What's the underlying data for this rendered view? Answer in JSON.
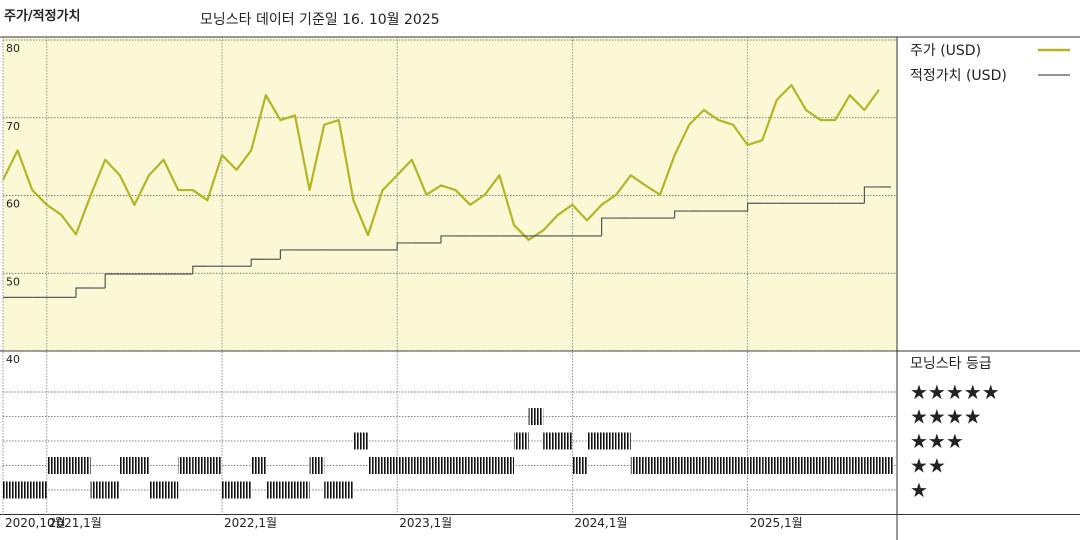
{
  "chart_data": [
    {
      "type": "line",
      "title": "주가/적정가치",
      "subtitle": "모닝스타 데이터 기준일 16. 10월 2025",
      "x": [
        "2020-10",
        "2020-11",
        "2020-12",
        "2021-01",
        "2021-02",
        "2021-03",
        "2021-04",
        "2021-05",
        "2021-06",
        "2021-07",
        "2021-08",
        "2021-09",
        "2021-10",
        "2021-11",
        "2021-12",
        "2022-01",
        "2022-02",
        "2022-03",
        "2022-04",
        "2022-05",
        "2022-06",
        "2022-07",
        "2022-08",
        "2022-09",
        "2022-10",
        "2022-11",
        "2022-12",
        "2023-01",
        "2023-02",
        "2023-03",
        "2023-04",
        "2023-05",
        "2023-06",
        "2023-07",
        "2023-08",
        "2023-09",
        "2023-10",
        "2023-11",
        "2023-12",
        "2024-01",
        "2024-02",
        "2024-03",
        "2024-04",
        "2024-05",
        "2024-06",
        "2024-07",
        "2024-08",
        "2024-09",
        "2024-10",
        "2024-11",
        "2024-12",
        "2025-01",
        "2025-02",
        "2025-03",
        "2025-04",
        "2025-05",
        "2025-06",
        "2025-07",
        "2025-08",
        "2025-09",
        "2025-10"
      ],
      "series": [
        {
          "name": "주가 (USD)",
          "color": "#b3b525",
          "style": "line",
          "values": [
            62,
            65.8,
            60.7,
            58.8,
            57.5,
            55,
            60,
            64.6,
            62.6,
            58.8,
            62.6,
            64.6,
            60.7,
            60.7,
            59.4,
            65.2,
            63.3,
            65.8,
            72.9,
            69.7,
            70.3,
            60.7,
            69.1,
            69.7,
            59.4,
            54.9,
            60.7,
            62.6,
            64.6,
            60.1,
            61.3,
            60.7,
            58.8,
            60.1,
            62.6,
            56.2,
            54.3,
            55.5,
            57.5,
            58.8,
            56.8,
            58.8,
            60.1,
            62.6,
            61.3,
            60.1,
            65.2,
            69.1,
            71,
            69.7,
            69.1,
            66.5,
            67.1,
            72.3,
            74.2,
            71,
            69.7,
            69.7,
            72.9,
            71,
            73.6
          ]
        },
        {
          "name": "적정가치 (USD)",
          "color": "#555555",
          "style": "step",
          "values": [
            46.9,
            46.9,
            46.9,
            46.9,
            46.9,
            48.1,
            48.1,
            49.9,
            49.9,
            49.9,
            49.9,
            49.9,
            49.9,
            50.9,
            50.9,
            50.9,
            50.9,
            51.8,
            51.8,
            53.0,
            53.0,
            53.0,
            53.0,
            53.0,
            53.0,
            53.0,
            53.0,
            53.9,
            53.9,
            53.9,
            54.8,
            54.8,
            54.8,
            54.8,
            54.8,
            54.8,
            54.8,
            54.8,
            54.8,
            54.8,
            54.8,
            57.1,
            57.1,
            57.1,
            57.1,
            57.1,
            58.0,
            58.0,
            58.0,
            58.0,
            58.0,
            59.0,
            59.0,
            59.0,
            59.0,
            59.0,
            59.0,
            59.0,
            59.0,
            61.1,
            61.1
          ]
        }
      ],
      "ylim": [
        40,
        80
      ],
      "yticks": [
        40,
        50,
        60,
        70,
        80
      ],
      "grid": true,
      "background": "#fbf8d6"
    },
    {
      "type": "rating",
      "title": "모닝스타 등급",
      "x": [
        "2020-10",
        "2020-11",
        "2020-12",
        "2021-01",
        "2021-02",
        "2021-03",
        "2021-04",
        "2021-05",
        "2021-06",
        "2021-07",
        "2021-08",
        "2021-09",
        "2021-10",
        "2021-11",
        "2021-12",
        "2022-01",
        "2022-02",
        "2022-03",
        "2022-04",
        "2022-05",
        "2022-06",
        "2022-07",
        "2022-08",
        "2022-09",
        "2022-10",
        "2022-11",
        "2022-12",
        "2023-01",
        "2023-02",
        "2023-03",
        "2023-04",
        "2023-05",
        "2023-06",
        "2023-07",
        "2023-08",
        "2023-09",
        "2023-10",
        "2023-11",
        "2023-12",
        "2024-01",
        "2024-02",
        "2024-03",
        "2024-04",
        "2024-05",
        "2024-06",
        "2024-07",
        "2024-08",
        "2024-09",
        "2024-10",
        "2024-11",
        "2024-12",
        "2025-01",
        "2025-02",
        "2025-03",
        "2025-04",
        "2025-05",
        "2025-06",
        "2025-07",
        "2025-08",
        "2025-09",
        "2025-10"
      ],
      "values": [
        1,
        1,
        1,
        2,
        2,
        2,
        1,
        1,
        2,
        2,
        1,
        1,
        2,
        2,
        2,
        1,
        1,
        2,
        1,
        1,
        1,
        2,
        1,
        1,
        3,
        2,
        2,
        2,
        2,
        2,
        2,
        2,
        2,
        2,
        2,
        3,
        4,
        3,
        3,
        2,
        3,
        3,
        3,
        2,
        2,
        2,
        2,
        2,
        2,
        2,
        2,
        2,
        2,
        2,
        2,
        2,
        2,
        2,
        2,
        2,
        2
      ],
      "ylim": [
        0,
        6.5
      ],
      "yticks": [
        {
          "value": 5,
          "label": "★★★★★"
        },
        {
          "value": 4,
          "label": "★★★★"
        },
        {
          "value": 3,
          "label": "★★★"
        },
        {
          "value": 2,
          "label": "★★"
        },
        {
          "value": 1,
          "label": "★"
        }
      ],
      "xticks": [
        {
          "value": "2020-10",
          "label": "2020,10월"
        },
        {
          "value": "2021-01",
          "label": "2021,1월"
        },
        {
          "value": "2022-01",
          "label": "2022,1월"
        },
        {
          "value": "2023-01",
          "label": "2023,1월"
        },
        {
          "value": "2024-01",
          "label": "2024,1월"
        },
        {
          "value": "2025-01",
          "label": "2025,1월"
        }
      ]
    }
  ]
}
